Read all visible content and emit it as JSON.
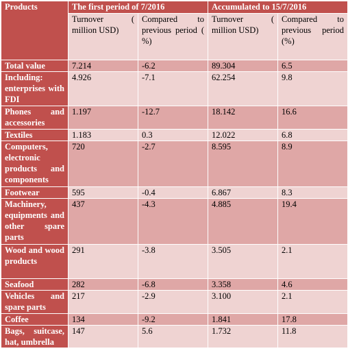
{
  "table": {
    "corner": "Products",
    "group_headers": [
      "The first period of 7/2016",
      "Accumulated to 15/7/2016"
    ],
    "sub_headers": [
      "Turnover ( million USD)",
      "Compared to previous period ( %)",
      "Turnover ( million USD)",
      "Compared to previous period (%)"
    ],
    "rows": [
      {
        "product": "Total value",
        "turnover_period": "7.214",
        "change_period": "-6.2",
        "turnover_accum": "89.304",
        "change_accum": "6.5"
      },
      {
        "product": "Including: enterprises with FDI",
        "turnover_period": "4.926",
        "change_period": "-7.1",
        "turnover_accum": "62.254",
        "change_accum": "9.8"
      },
      {
        "product": "Phones and accessories",
        "turnover_period": "1.197",
        "change_period": "-12.7",
        "turnover_accum": "18.142",
        "change_accum": "16.6"
      },
      {
        "product": "Textiles",
        "turnover_period": "1.183",
        "change_period": "0.3",
        "turnover_accum": "12.022",
        "change_accum": "6.8"
      },
      {
        "product": "Computers, electronic products and components",
        "turnover_period": "720",
        "change_period": "-2.7",
        "turnover_accum": "8.595",
        "change_accum": "8.9"
      },
      {
        "product": "Footwear",
        "turnover_period": "595",
        "change_period": "-0.4",
        "turnover_accum": "6.867",
        "change_accum": "8.3"
      },
      {
        "product": "Machinery, equipments and other spare parts",
        "turnover_period": "437",
        "change_period": "-4.3",
        "turnover_accum": "4.885",
        "change_accum": "19.4"
      },
      {
        "product": "Wood and wood products",
        "turnover_period": "291",
        "change_period": "-3.8",
        "turnover_accum": "3.505",
        "change_accum": "2.1"
      },
      {
        "product": "Seafood",
        "turnover_period": "282",
        "change_period": "-6.8",
        "turnover_accum": "3.358",
        "change_accum": "4.6"
      },
      {
        "product": "Vehicles and spare parts",
        "turnover_period": "217",
        "change_period": "-2.9",
        "turnover_accum": "3.100",
        "change_accum": "2.1"
      },
      {
        "product": "Coffee",
        "turnover_period": "134",
        "change_period": "-9.2",
        "turnover_accum": "1.841",
        "change_accum": "17.8"
      },
      {
        "product": "Bags, suitcase, hat, umbrella",
        "turnover_period": "147",
        "change_period": "5.6",
        "turnover_accum": "1.732",
        "change_accum": "11.8"
      }
    ]
  },
  "colors": {
    "header_red": "#c0504d",
    "row_dark": "#dfa7a6",
    "row_light": "#efd3d2",
    "header_text": "#ffffff"
  }
}
